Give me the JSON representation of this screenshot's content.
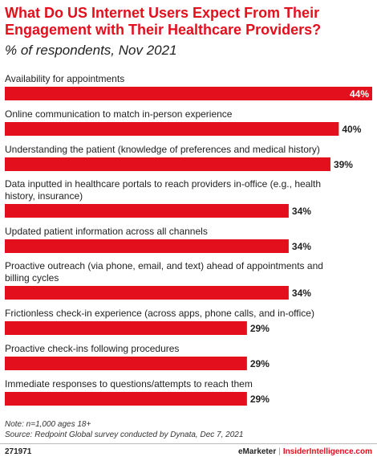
{
  "chart_data": {
    "type": "bar",
    "orientation": "horizontal",
    "title": "What Do US Internet Users Expect From Their Engagement with Their Healthcare Providers?",
    "subtitle": "% of respondents, Nov 2021",
    "categories": [
      [
        "Availability for appointments"
      ],
      [
        "Online communication to match in-person experience"
      ],
      [
        "Understanding the patient (knowledge of preferences and medical history)"
      ],
      [
        "Data inputted in healthcare portals to reach providers in-office (e.g., health",
        "history, insurance)"
      ],
      [
        "Updated patient information across all channels"
      ],
      [
        "Proactive outreach (via phone, email, and text) ahead of appointments and",
        "billing cycles"
      ],
      [
        "Frictionless check-in experience (across apps, phone calls, and in-office)"
      ],
      [
        "Proactive check-ins following procedures"
      ],
      [
        "Immediate responses to questions/attempts to reach them"
      ]
    ],
    "values": [
      44,
      40,
      39,
      34,
      34,
      34,
      29,
      29,
      29
    ],
    "value_labels": [
      "44%",
      "40%",
      "39%",
      "34%",
      "34%",
      "34%",
      "29%",
      "29%",
      "29%"
    ],
    "xlim": [
      0,
      44
    ],
    "bar_color": "#e30f1c",
    "grid": false,
    "legend": "none"
  },
  "notes": {
    "note": "Note: n=1,000 ages 18+",
    "source": "Source: Redpoint Global survey conducted by Dynata, Dec 7, 2021"
  },
  "footer": {
    "chart_id": "271971",
    "brand_left": "eMarketer",
    "brand_separator": "|",
    "brand_right": "InsiderIntelligence.com"
  }
}
